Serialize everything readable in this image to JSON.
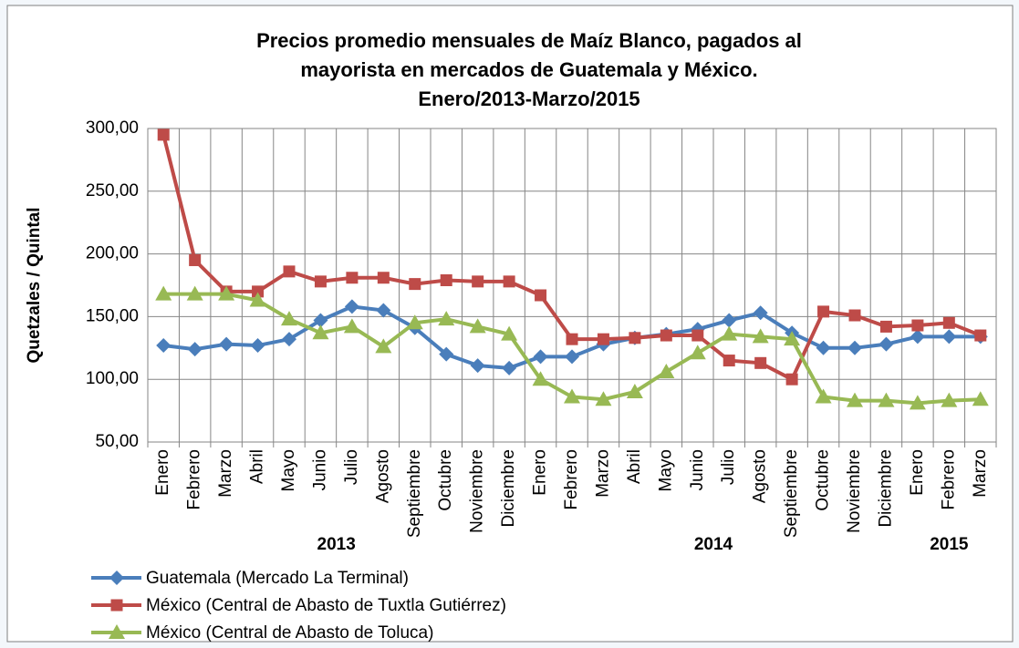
{
  "chart_data": {
    "type": "line",
    "title": [
      "Precios promedio mensuales de Maíz Blanco, pagados al",
      "mayorista en mercados de Guatemala y México.",
      "Enero/2013-Marzo/2015"
    ],
    "y_label": "Quetzales / Quintal",
    "categories": [
      "Enero",
      "Febrero",
      "Marzo",
      "Abril",
      "Mayo",
      "Junio",
      "Julio",
      "Agosto",
      "Septiembre",
      "Octubre",
      "Noviembre",
      "Diciembre",
      "Enero",
      "Febrero",
      "Marzo",
      "Abril",
      "Mayo",
      "Junio",
      "Julio",
      "Agosto",
      "Septiembre",
      "Octubre",
      "Noviembre",
      "Diciembre",
      "Enero",
      "Febrero",
      "Marzo"
    ],
    "year_labels": [
      "2013",
      "2014",
      "2015"
    ],
    "series": [
      {
        "name": "Guatemala (Mercado La Terminal)",
        "color": "#4a7ebb",
        "marker": "diamond",
        "values": [
          127,
          124,
          128,
          127,
          132,
          147,
          158,
          155,
          141,
          120,
          111,
          109,
          118,
          118,
          128,
          133,
          136,
          140,
          147,
          153,
          137,
          125,
          125,
          128,
          134,
          134,
          134
        ]
      },
      {
        "name": "México (Central de Abasto de Tuxtla Gutiérrez)",
        "color": "#be4b48",
        "marker": "square",
        "values": [
          295,
          195,
          170,
          170,
          186,
          178,
          181,
          181,
          176,
          179,
          178,
          178,
          167,
          132,
          132,
          133,
          135,
          135,
          115,
          113,
          100,
          154,
          151,
          142,
          143,
          145,
          135
        ]
      },
      {
        "name": "México (Central de Abasto de Toluca)",
        "color": "#98b954",
        "marker": "triangle",
        "values": [
          168,
          168,
          168,
          163,
          148,
          137,
          142,
          126,
          145,
          148,
          142,
          136,
          100,
          86,
          84,
          90,
          106,
          121,
          136,
          134,
          132,
          86,
          83,
          83,
          81,
          83,
          84
        ]
      }
    ],
    "ylim": [
      50,
      300
    ],
    "yticks": [
      {
        "value": 50,
        "label": "50,00"
      },
      {
        "value": 100,
        "label": "100,00"
      },
      {
        "value": 150,
        "label": "150,00"
      },
      {
        "value": 200,
        "label": "200,00"
      },
      {
        "value": 250,
        "label": "250,00"
      },
      {
        "value": 300,
        "label": "300,00"
      }
    ],
    "grid": true,
    "legend": "bottom-left"
  }
}
